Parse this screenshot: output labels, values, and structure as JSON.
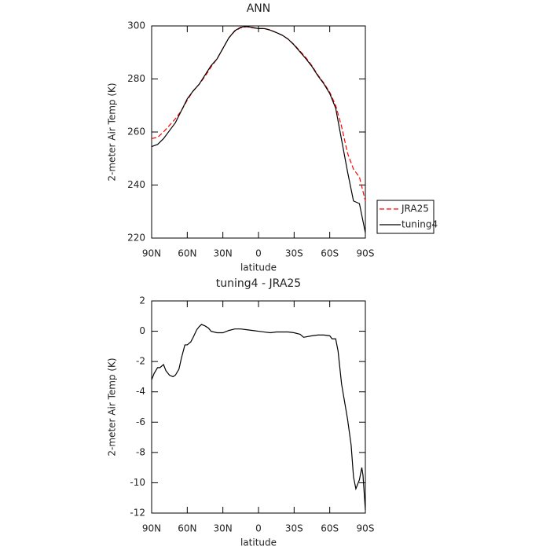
{
  "chart_data": [
    {
      "type": "line",
      "title": "ANN",
      "x_label": "latitude",
      "y_label": "2-meter Air Temp (K)",
      "x": [
        90,
        85,
        80,
        75,
        70,
        65,
        60,
        55,
        50,
        45,
        40,
        35,
        30,
        25,
        20,
        15,
        10,
        5,
        0,
        -5,
        -10,
        -15,
        -20,
        -25,
        -30,
        -35,
        -40,
        -45,
        -50,
        -55,
        -60,
        -65,
        -70,
        -75,
        -80,
        -85,
        -90
      ],
      "series": [
        {
          "name": "JRA25",
          "color": "#ff0000",
          "linestyle": "dashed",
          "values": [
            257.5,
            258,
            260,
            262.5,
            265,
            268,
            272,
            275.5,
            278,
            281,
            284.5,
            287.5,
            291.5,
            295.5,
            298,
            299.3,
            299.7,
            299.3,
            299,
            299,
            298.5,
            297.5,
            296.5,
            295,
            293,
            290.5,
            288,
            285,
            281.5,
            278.5,
            275,
            270,
            262,
            252,
            246,
            243,
            234
          ]
        },
        {
          "name": "tuning4",
          "color": "#000000",
          "linestyle": "solid",
          "values": [
            254.5,
            255.3,
            257.5,
            260.5,
            263.5,
            268,
            272.5,
            275.5,
            278,
            281.5,
            285,
            287.5,
            291.5,
            295.5,
            298.2,
            299.5,
            299.8,
            299.4,
            299,
            299,
            298.4,
            297.5,
            296.5,
            295,
            292.8,
            290.2,
            287.6,
            284.7,
            281.2,
            278.2,
            274.5,
            269,
            257,
            245,
            234,
            233,
            222
          ]
        }
      ],
      "xlim": [
        90,
        -90
      ],
      "xticks": [
        {
          "value": 90,
          "label": "90N"
        },
        {
          "value": 60,
          "label": "60N"
        },
        {
          "value": 30,
          "label": "30N"
        },
        0,
        {
          "value": -30,
          "label": "30S"
        },
        {
          "value": -60,
          "label": "60S"
        },
        {
          "value": -90,
          "label": "90S"
        }
      ],
      "ylim": [
        220,
        300
      ],
      "yticks": [
        220,
        240,
        260,
        280,
        300
      ],
      "legend": "right"
    },
    {
      "type": "line",
      "title": "tuning4 - JRA25",
      "x_label": "latitude",
      "y_label": "2-meter Air Temp (K)",
      "x": [
        90,
        88,
        85,
        83,
        80,
        78,
        75,
        72,
        70,
        67,
        65,
        62,
        60,
        57,
        55,
        52,
        50,
        48,
        45,
        42,
        40,
        35,
        30,
        25,
        20,
        15,
        10,
        5,
        0,
        -5,
        -10,
        -15,
        -20,
        -25,
        -30,
        -35,
        -38,
        -45,
        -50,
        -55,
        -60,
        -62,
        -65,
        -67,
        -70,
        -75,
        -78,
        -80,
        -82,
        -85,
        -87,
        -88,
        -90
      ],
      "series": [
        {
          "color": "#000000",
          "linestyle": "solid",
          "values": [
            -3.2,
            -2.8,
            -2.4,
            -2.4,
            -2.2,
            -2.6,
            -2.9,
            -3.0,
            -2.9,
            -2.5,
            -1.8,
            -0.9,
            -0.9,
            -0.7,
            -0.4,
            0.1,
            0.3,
            0.45,
            0.35,
            0.2,
            0.0,
            -0.1,
            -0.1,
            0.05,
            0.15,
            0.15,
            0.1,
            0.05,
            0.0,
            -0.05,
            -0.1,
            -0.05,
            -0.05,
            -0.05,
            -0.1,
            -0.2,
            -0.4,
            -0.3,
            -0.25,
            -0.25,
            -0.3,
            -0.5,
            -0.5,
            -1.3,
            -3.5,
            -5.8,
            -7.5,
            -9.6,
            -10.4,
            -9.8,
            -9.0,
            -9.5,
            -11.8
          ]
        }
      ],
      "xlim": [
        90,
        -90
      ],
      "xticks": [
        {
          "value": 90,
          "label": "90N"
        },
        {
          "value": 60,
          "label": "60N"
        },
        {
          "value": 30,
          "label": "30N"
        },
        0,
        {
          "value": -30,
          "label": "30S"
        },
        {
          "value": -60,
          "label": "60S"
        },
        {
          "value": -90,
          "label": "90S"
        }
      ],
      "ylim": [
        -12,
        2
      ],
      "yticks": [
        -12,
        -10,
        -8,
        -6,
        -4,
        -2,
        0,
        2
      ]
    }
  ]
}
